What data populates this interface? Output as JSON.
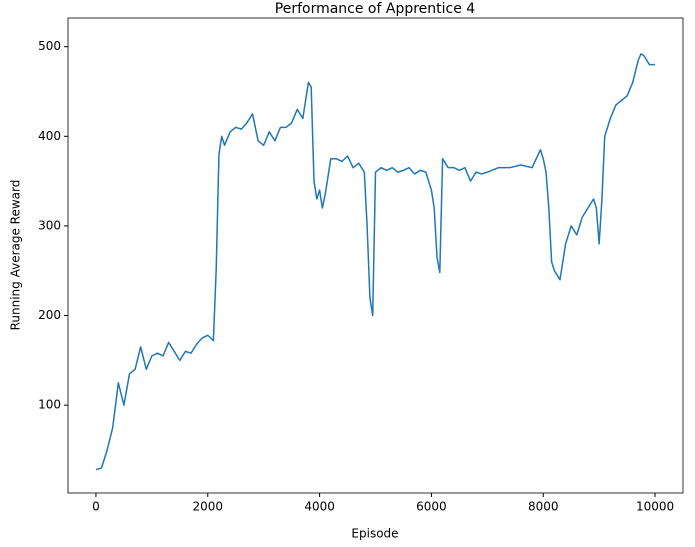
{
  "chart_data": {
    "type": "line",
    "title": "Performance of Apprentice 4",
    "x_label": "Episode",
    "y_label": "Running Average Reward",
    "x": [
      0,
      100,
      200,
      300,
      400,
      500,
      600,
      700,
      800,
      900,
      1000,
      1100,
      1200,
      1300,
      1400,
      1500,
      1600,
      1700,
      1800,
      1900,
      2000,
      2100,
      2150,
      2200,
      2250,
      2300,
      2400,
      2500,
      2600,
      2700,
      2800,
      2900,
      3000,
      3100,
      3200,
      3300,
      3400,
      3500,
      3600,
      3700,
      3800,
      3850,
      3900,
      3950,
      4000,
      4050,
      4100,
      4200,
      4300,
      4400,
      4500,
      4600,
      4700,
      4800,
      4850,
      4900,
      4950,
      5000,
      5100,
      5200,
      5300,
      5400,
      5500,
      5600,
      5700,
      5800,
      5900,
      6000,
      6050,
      6100,
      6150,
      6200,
      6300,
      6400,
      6500,
      6600,
      6700,
      6800,
      6900,
      7000,
      7200,
      7400,
      7600,
      7800,
      7950,
      8000,
      8050,
      8100,
      8150,
      8200,
      8300,
      8400,
      8500,
      8600,
      8700,
      8800,
      8900,
      8950,
      9000,
      9050,
      9100,
      9200,
      9300,
      9400,
      9500,
      9600,
      9700,
      9750,
      9800,
      9900,
      10000
    ],
    "series": [
      {
        "name": "Running Average Reward",
        "color": "#1f77b4",
        "values": [
          28,
          30,
          50,
          75,
          125,
          100,
          135,
          140,
          165,
          140,
          155,
          158,
          155,
          170,
          160,
          150,
          160,
          158,
          168,
          175,
          178,
          172,
          250,
          380,
          400,
          390,
          405,
          410,
          408,
          415,
          425,
          395,
          390,
          405,
          395,
          410,
          410,
          415,
          430,
          420,
          460,
          455,
          350,
          330,
          340,
          320,
          335,
          375,
          375,
          372,
          378,
          365,
          370,
          360,
          300,
          220,
          200,
          360,
          365,
          362,
          365,
          360,
          362,
          365,
          358,
          362,
          360,
          340,
          320,
          265,
          248,
          375,
          365,
          365,
          362,
          365,
          350,
          360,
          358,
          360,
          365,
          365,
          368,
          365,
          385,
          375,
          360,
          320,
          260,
          250,
          240,
          280,
          300,
          290,
          310,
          320,
          330,
          320,
          280,
          330,
          400,
          420,
          435,
          440,
          445,
          460,
          485,
          492,
          490,
          480,
          480
        ]
      }
    ],
    "xlim": [
      -500,
      10500
    ],
    "ylim": [
      2,
      532
    ],
    "xticks": [
      0,
      2000,
      4000,
      6000,
      8000,
      10000
    ],
    "yticks": [
      100,
      200,
      300,
      400,
      500
    ]
  }
}
